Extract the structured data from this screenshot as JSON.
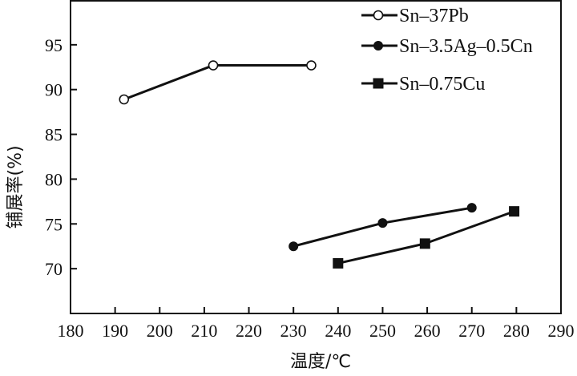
{
  "chart_data": {
    "type": "line",
    "title": "",
    "xlabel": "温度/℃",
    "ylabel": "铺展率(%)",
    "xlim": [
      180,
      290
    ],
    "ylim": [
      65,
      100
    ],
    "xticks": [
      180,
      190,
      200,
      210,
      220,
      230,
      240,
      250,
      260,
      270,
      280,
      290
    ],
    "yticks": [
      70,
      75,
      80,
      85,
      90,
      95
    ],
    "grid": false,
    "legend_position": "top-right",
    "series": [
      {
        "name": "Sn–37Pb",
        "marker": "open-circle",
        "x": [
          192,
          212,
          234
        ],
        "y": [
          88.9,
          92.7,
          92.7
        ]
      },
      {
        "name": "Sn–3.5Ag–0.5Cn",
        "marker": "filled-circle",
        "x": [
          230,
          250,
          270
        ],
        "y": [
          72.5,
          75.1,
          76.8
        ]
      },
      {
        "name": "Sn–0.75Cu",
        "marker": "filled-square",
        "x": [
          240,
          259.5,
          279.5
        ],
        "y": [
          70.6,
          72.8,
          76.4
        ]
      }
    ]
  }
}
